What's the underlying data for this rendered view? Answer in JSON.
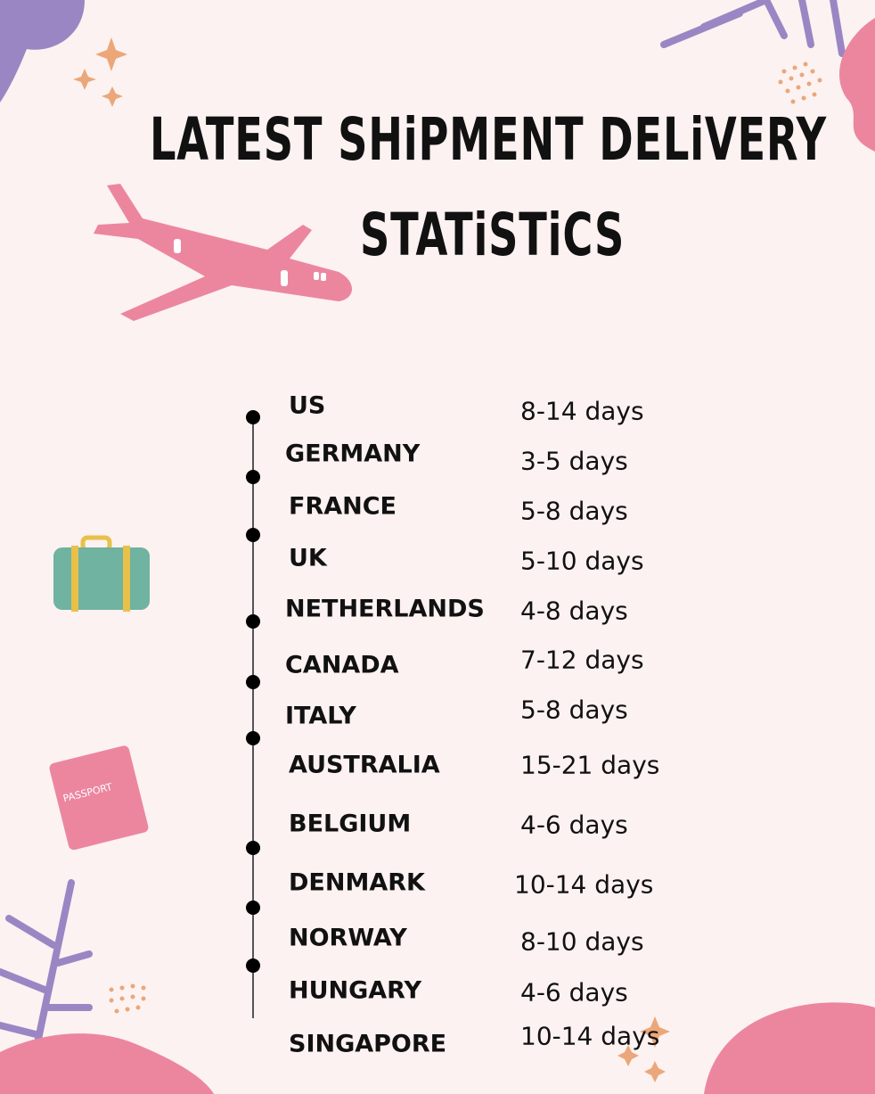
{
  "title": {
    "line1": "LATEST SHiPMENT DELiVERY",
    "line2": "STATiSTiCS"
  },
  "rows": [
    {
      "country": "US",
      "days": "8-14 days"
    },
    {
      "country": "GERMANY",
      "days": "3-5 days"
    },
    {
      "country": "FRANCE",
      "days": "5-8 days"
    },
    {
      "country": "UK",
      "days": "5-10 days"
    },
    {
      "country": "NETHERLANDS",
      "days": "4-8 days"
    },
    {
      "country": "CANADA",
      "days": "7-12 days"
    },
    {
      "country": "ITALY",
      "days": "5-8 days"
    },
    {
      "country": "AUSTRALIA",
      "days": "15-21 days"
    },
    {
      "country": "BELGIUM",
      "days": "4-6 days"
    },
    {
      "country": "DENMARK",
      "days": "10-14 days"
    },
    {
      "country": "NORWAY",
      "days": "8-10 days"
    },
    {
      "country": "HUNGARY",
      "days": "4-6 days"
    },
    {
      "country": "SINGAPORE",
      "days": "10-14 days"
    }
  ],
  "decorations": {
    "passport_label": "PASSPORT"
  },
  "colors": {
    "background": "#fcf2f1",
    "pink": "#ec869f",
    "purple": "#9b86c4",
    "orange": "#eba77a"
  }
}
